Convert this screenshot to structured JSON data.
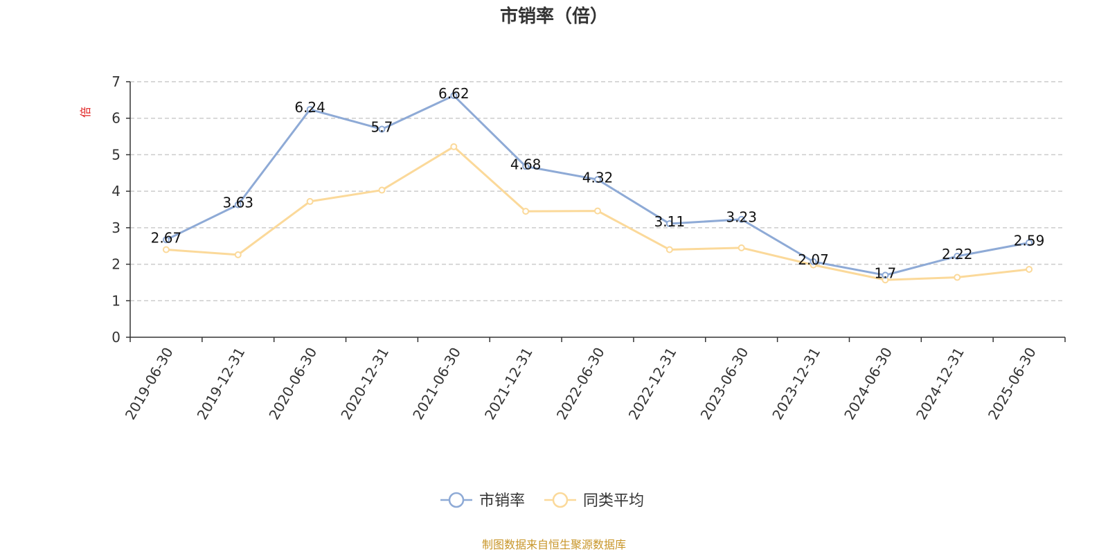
{
  "chart_data": {
    "type": "line",
    "title": "市销率（倍）",
    "ylabel": "倍",
    "ylim": [
      0,
      7
    ],
    "yticks": [
      0,
      1,
      2,
      3,
      4,
      5,
      6,
      7
    ],
    "grid": true,
    "legend_position": "bottom-center",
    "categories": [
      "2019-06-30",
      "2019-12-31",
      "2020-06-30",
      "2020-12-31",
      "2021-06-30",
      "2021-12-31",
      "2022-06-30",
      "2022-12-31",
      "2023-06-30",
      "2023-12-31",
      "2024-06-30",
      "2024-12-31",
      "2025-06-30"
    ],
    "series": [
      {
        "name": "市销率",
        "color": "#8eaad6",
        "values": [
          2.67,
          3.63,
          6.24,
          5.7,
          6.62,
          4.68,
          4.32,
          3.11,
          3.23,
          2.07,
          1.7,
          2.22,
          2.59
        ],
        "labels": [
          "2.67",
          "3.63",
          "6.24",
          "5.7",
          "6.62",
          "4.68",
          "4.32",
          "3.11",
          "3.23",
          "2.07",
          "1.7",
          "2.22",
          "2.59"
        ]
      },
      {
        "name": "同类平均",
        "color": "#fbd99a",
        "values": [
          2.4,
          2.26,
          3.72,
          4.03,
          5.22,
          3.45,
          3.46,
          2.4,
          2.45,
          1.98,
          1.57,
          1.64,
          1.86
        ]
      }
    ],
    "source": "制图数据来自恒生聚源数据库"
  }
}
